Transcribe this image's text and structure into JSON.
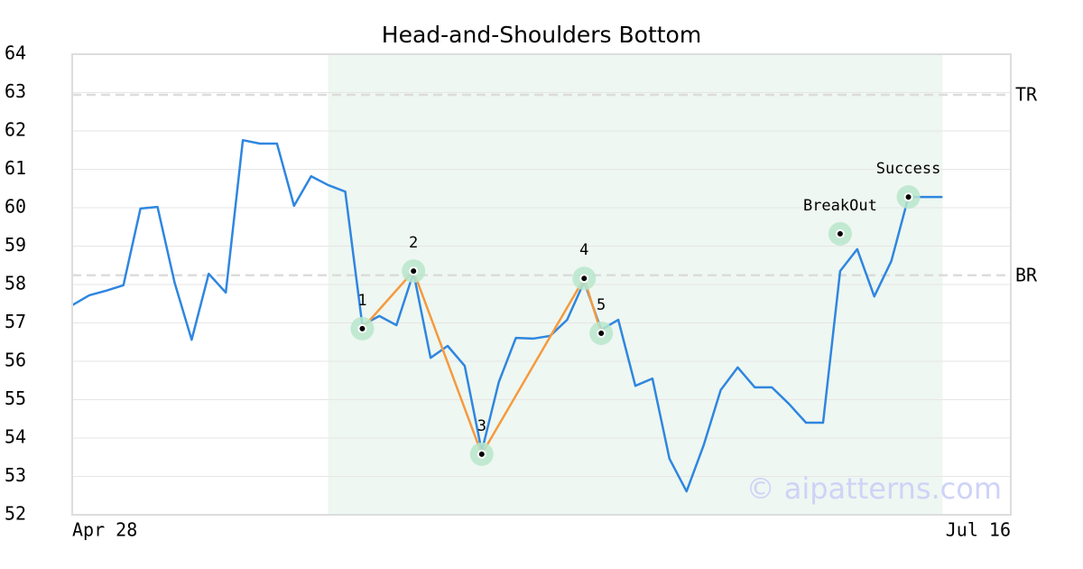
{
  "chart_data": {
    "type": "line",
    "title": "Head-and-Shoulders Bottom",
    "watermark": "© aipatterns.com",
    "xlim": [
      0,
      55
    ],
    "xticks": [
      {
        "value": 0,
        "label": "Apr 28"
      },
      {
        "value": 55,
        "label": "Jul 16"
      }
    ],
    "ylim": [
      52,
      64
    ],
    "yticks": [
      52,
      53,
      54,
      55,
      56,
      57,
      58,
      59,
      60,
      61,
      62,
      63,
      64
    ],
    "grid": true,
    "highlight": [
      15,
      51
    ],
    "highlight_color": "#eef7f1",
    "series": [
      {
        "color": "#2f86e0",
        "values": [
          57.46,
          57.72,
          57.84,
          57.98,
          59.98,
          60.02,
          58.05,
          56.56,
          58.28,
          57.79,
          61.76,
          61.67,
          61.67,
          60.05,
          60.82,
          60.59,
          60.42,
          56.94,
          57.18,
          56.94,
          58.31,
          56.09,
          56.4,
          55.88,
          53.65,
          55.46,
          56.61,
          56.59,
          56.66,
          57.08,
          58.07,
          56.82,
          57.08,
          55.36,
          55.55,
          53.46,
          52.61,
          53.81,
          55.25,
          55.84,
          55.32,
          55.32,
          54.89,
          54.4,
          54.4,
          58.35,
          58.92,
          57.69,
          58.61,
          60.28,
          60.28,
          60.28
        ]
      }
    ],
    "pattern_color": "#f59a3e",
    "marker_color": "#b8e6cc",
    "patterns": [
      {
        "label": "1",
        "x": 17,
        "y": 56.85
      },
      {
        "label": "2",
        "x": 20,
        "y": 58.35
      },
      {
        "label": "3",
        "x": 24,
        "y": 53.58
      },
      {
        "label": "4",
        "x": 30,
        "y": 58.16
      },
      {
        "label": "5",
        "x": 31,
        "y": 56.73
      }
    ],
    "events": [
      {
        "label": "BreakOut",
        "x": 45,
        "y": 59.32
      },
      {
        "label": "Success",
        "x": 49,
        "y": 60.28
      }
    ],
    "levels": [
      {
        "label": "TR",
        "value": 62.94
      },
      {
        "label": "BR",
        "value": 58.24
      }
    ]
  }
}
